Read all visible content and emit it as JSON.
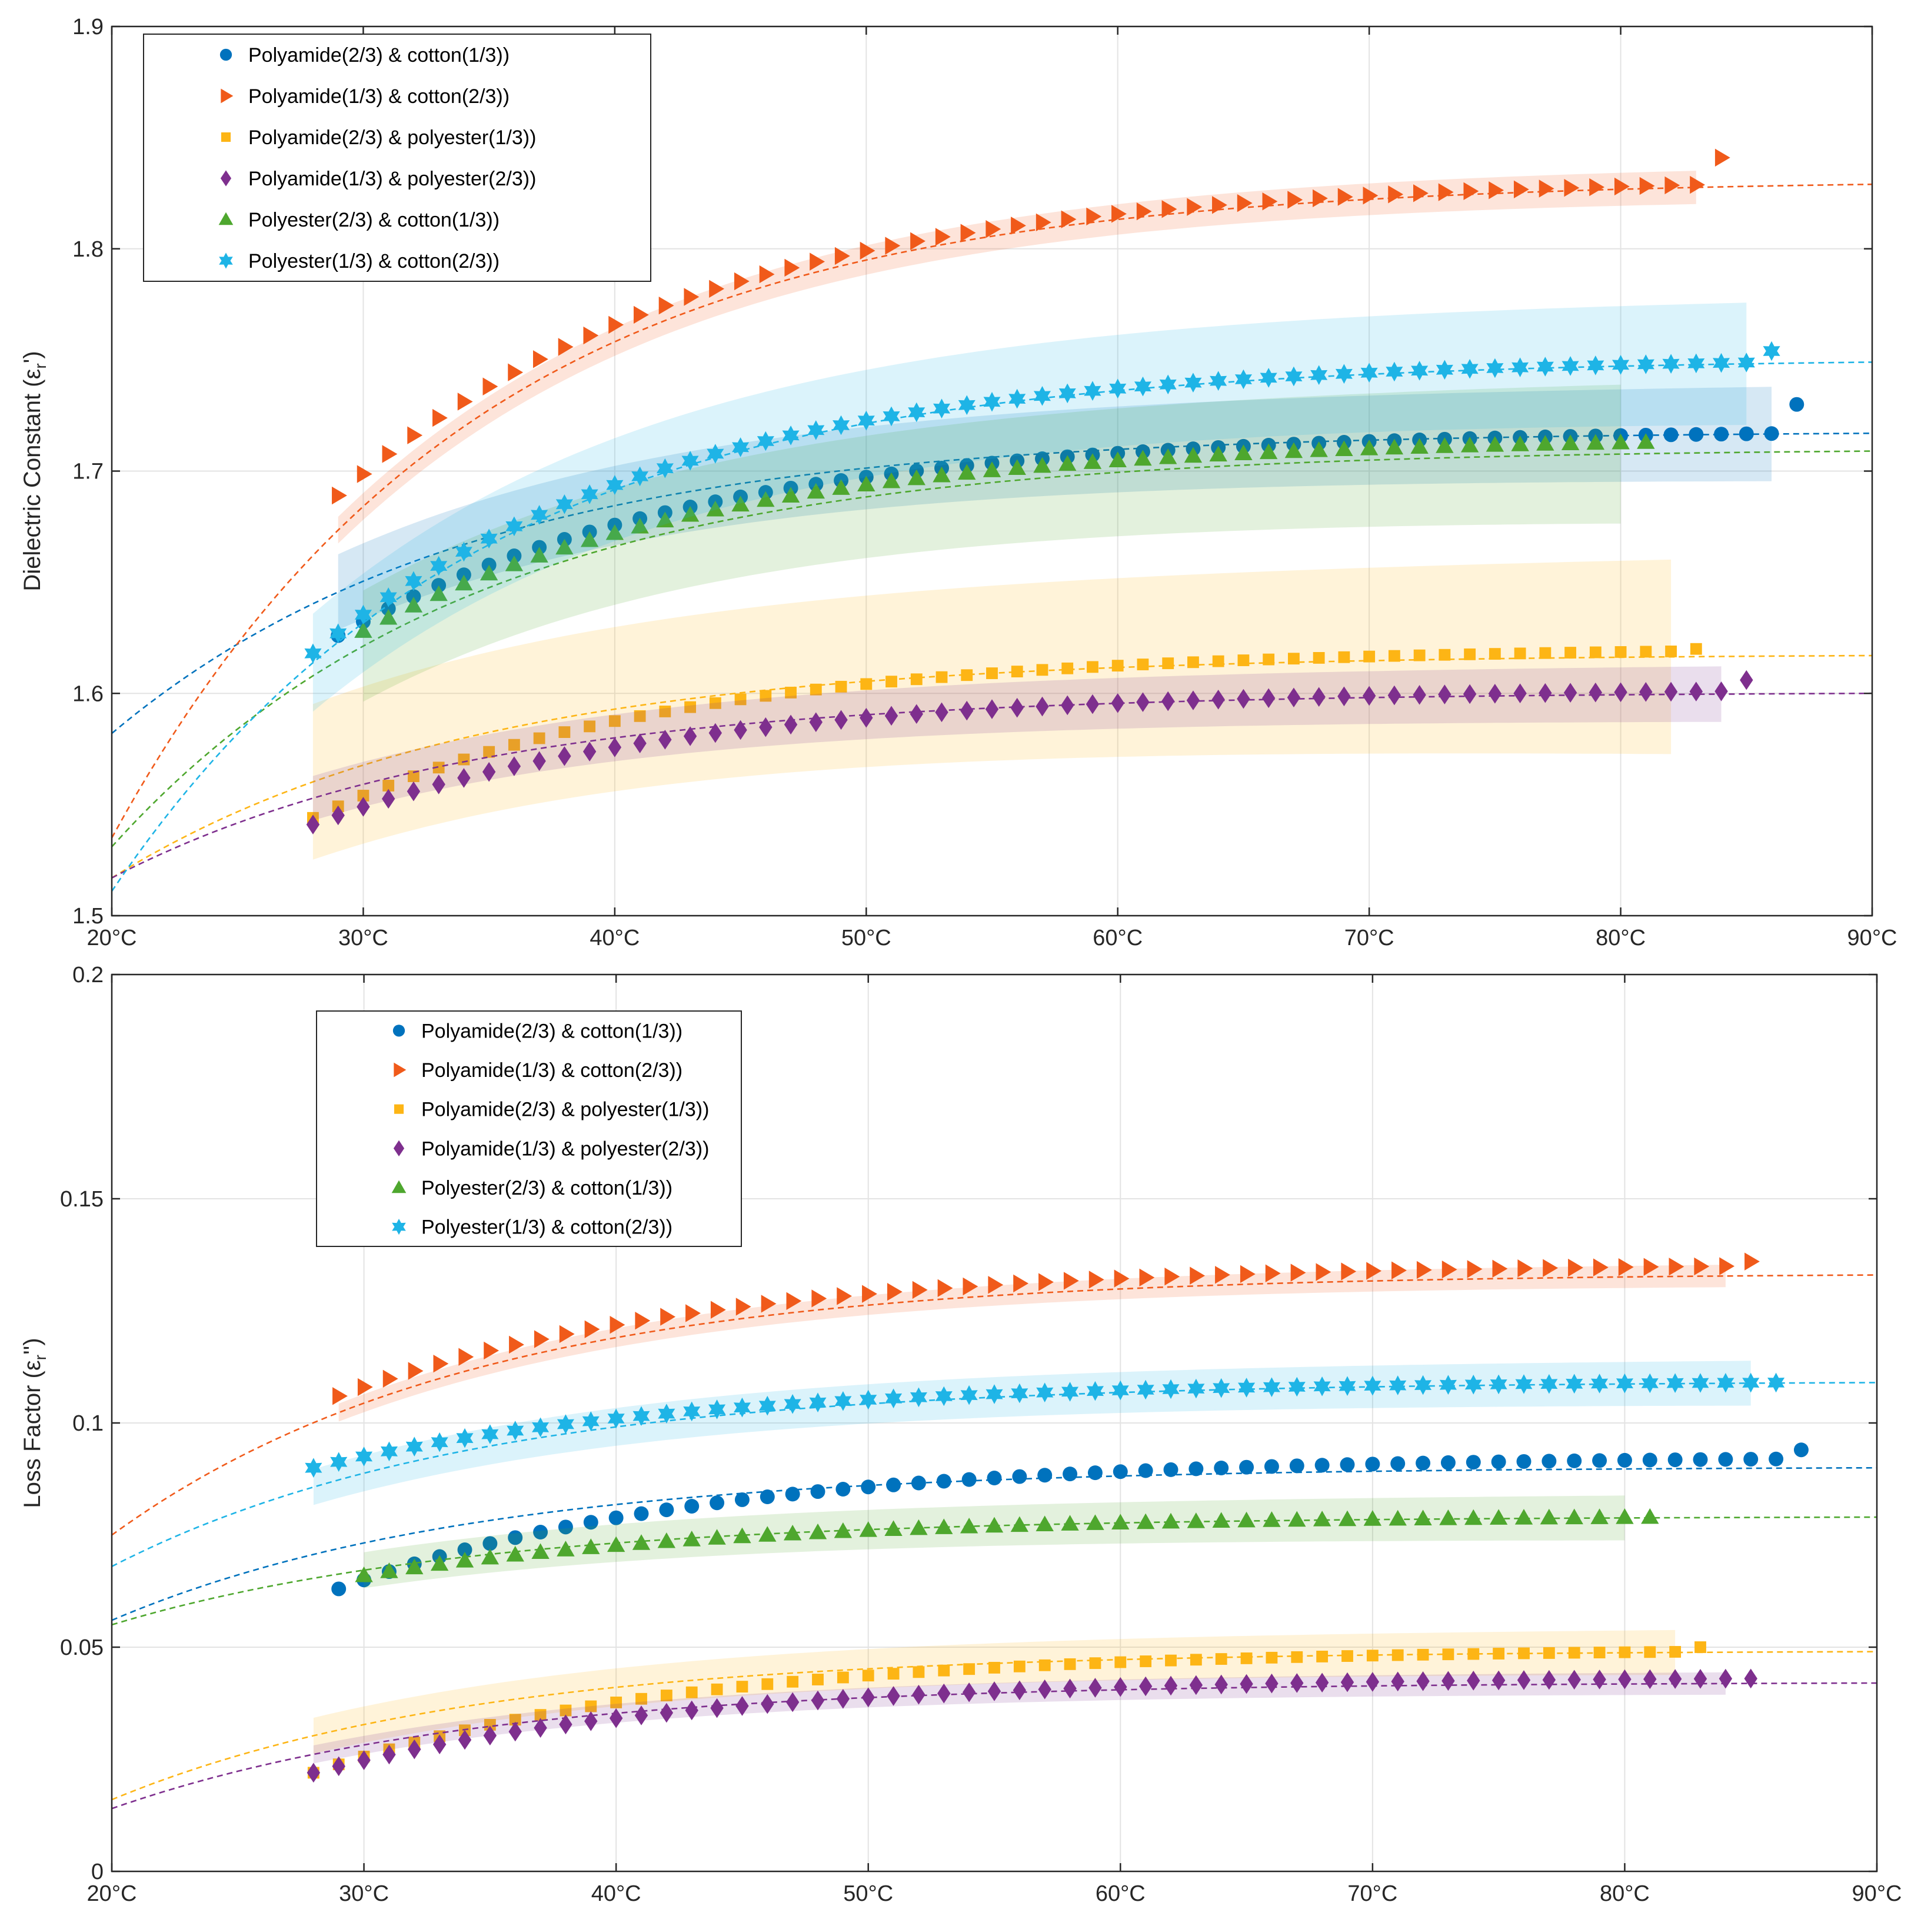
{
  "chart_data": [
    {
      "type": "scatter",
      "ylabel": "Dielectric Constant (ε_r')",
      "ylabel_main": "Dielectric Constant (ε",
      "ylabel_sub": "r",
      "ylabel_tail": "')",
      "xlim": [
        20,
        90
      ],
      "ylim": [
        1.5,
        1.9
      ],
      "xticks": [
        20,
        30,
        40,
        50,
        60,
        70,
        80,
        90
      ],
      "xtick_labels": [
        "20°C",
        "30°C",
        "40°C",
        "50°C",
        "60°C",
        "70°C",
        "80°C",
        "90°C"
      ],
      "yticks": [
        1.5,
        1.6,
        1.7,
        1.8,
        1.9
      ],
      "ytick_labels": [
        "1.5",
        "1.6",
        "1.7",
        "1.8",
        "1.9"
      ],
      "grid": true,
      "legend_position": "top-left",
      "series": [
        {
          "name": "Polyamide(2/3) & cotton(1/3))",
          "marker": "circle",
          "color": "#0072BD",
          "x_range": [
            29,
            87
          ],
          "y_start": 1.626,
          "y_end": 1.717,
          "y_last": 1.73,
          "fit": [
            1.582,
            1.717
          ],
          "band": 0.017
        },
        {
          "name": "Polyamide(1/3) & cotton(2/3))",
          "marker": "triangle-right",
          "color": "#F05A1A",
          "x_range": [
            29,
            84
          ],
          "y_start": 1.689,
          "y_end": 1.829,
          "y_last": 1.841,
          "fit": [
            1.535,
            1.829
          ],
          "band": 0.006
        },
        {
          "name": "Polyamide(2/3) & polyester(1/3))",
          "marker": "square",
          "color": "#FDB515",
          "x_range": [
            28,
            83
          ],
          "y_start": 1.544,
          "y_end": 1.619,
          "y_last": 1.62,
          "fit": [
            1.517,
            1.617
          ],
          "band": 0.035
        },
        {
          "name": "Polyamide(1/3) & polyester(2/3))",
          "marker": "diamond",
          "color": "#7E2F8E",
          "x_range": [
            28,
            85
          ],
          "y_start": 1.541,
          "y_end": 1.601,
          "y_last": 1.606,
          "fit": [
            1.517,
            1.6
          ],
          "band": 0.01
        },
        {
          "name": "Polyester(2/3) & cotton(1/3))",
          "marker": "triangle-up",
          "color": "#4EA72E",
          "x_range": [
            30,
            81
          ],
          "y_start": 1.628,
          "y_end": 1.713,
          "y_last": 1.713,
          "fit": [
            1.531,
            1.709
          ],
          "band": 0.025
        },
        {
          "name": "Polyester(1/3) & cotton(2/3))",
          "marker": "hexagram",
          "color": "#1EB4E6",
          "x_range": [
            28,
            86
          ],
          "y_start": 1.618,
          "y_end": 1.749,
          "y_last": 1.754,
          "fit": [
            1.511,
            1.749
          ],
          "band": 0.022
        }
      ]
    },
    {
      "type": "scatter",
      "ylabel": "Loss Factor (ε_r'')",
      "ylabel_main": "Loss Factor (ε",
      "ylabel_sub": "r",
      "ylabel_tail": "'')",
      "xlim": [
        20,
        90
      ],
      "ylim": [
        0,
        0.2
      ],
      "xticks": [
        20,
        30,
        40,
        50,
        60,
        70,
        80,
        90
      ],
      "xtick_labels": [
        "20°C",
        "30°C",
        "40°C",
        "50°C",
        "60°C",
        "70°C",
        "80°C",
        "90°C"
      ],
      "yticks": [
        0,
        0.05,
        0.1,
        0.15,
        0.2
      ],
      "ytick_labels": [
        "0",
        "0.05",
        "0.1",
        "0.15",
        "0.2"
      ],
      "grid": true,
      "legend_position": "top-left",
      "series": [
        {
          "name": "Polyamide(2/3) & cotton(1/3))",
          "marker": "circle",
          "color": "#0072BD",
          "x_range": [
            29,
            87
          ],
          "y_start": 0.063,
          "y_end": 0.092,
          "y_last": 0.094,
          "fit": [
            0.056,
            0.09
          ],
          "band": 0.0
        },
        {
          "name": "Polyamide(1/3) & cotton(2/3))",
          "marker": "triangle-right",
          "color": "#F05A1A",
          "x_range": [
            29,
            85
          ],
          "y_start": 0.106,
          "y_end": 0.135,
          "y_last": 0.136,
          "fit": [
            0.075,
            0.133
          ],
          "band": 0.002
        },
        {
          "name": "Polyamide(2/3) & polyester(1/3))",
          "marker": "square",
          "color": "#FDB515",
          "x_range": [
            28,
            83
          ],
          "y_start": 0.022,
          "y_end": 0.049,
          "y_last": 0.05,
          "fit": [
            0.016,
            0.049
          ],
          "band": 0.004
        },
        {
          "name": "Polyamide(1/3) & polyester(2/3))",
          "marker": "diamond",
          "color": "#7E2F8E",
          "x_range": [
            28,
            85
          ],
          "y_start": 0.022,
          "y_end": 0.043,
          "y_last": 0.043,
          "fit": [
            0.014,
            0.042
          ],
          "band": 0.002
        },
        {
          "name": "Polyester(2/3) & cotton(1/3))",
          "marker": "triangle-up",
          "color": "#4EA72E",
          "x_range": [
            30,
            81
          ],
          "y_start": 0.066,
          "y_end": 0.079,
          "y_last": 0.079,
          "fit": [
            0.055,
            0.079
          ],
          "band": 0.004
        },
        {
          "name": "Polyester(1/3) & cotton(2/3))",
          "marker": "hexagram",
          "color": "#1EB4E6",
          "x_range": [
            28,
            86
          ],
          "y_start": 0.09,
          "y_end": 0.109,
          "y_last": 0.109,
          "fit": [
            0.068,
            0.109
          ],
          "band": 0.004
        }
      ]
    }
  ]
}
